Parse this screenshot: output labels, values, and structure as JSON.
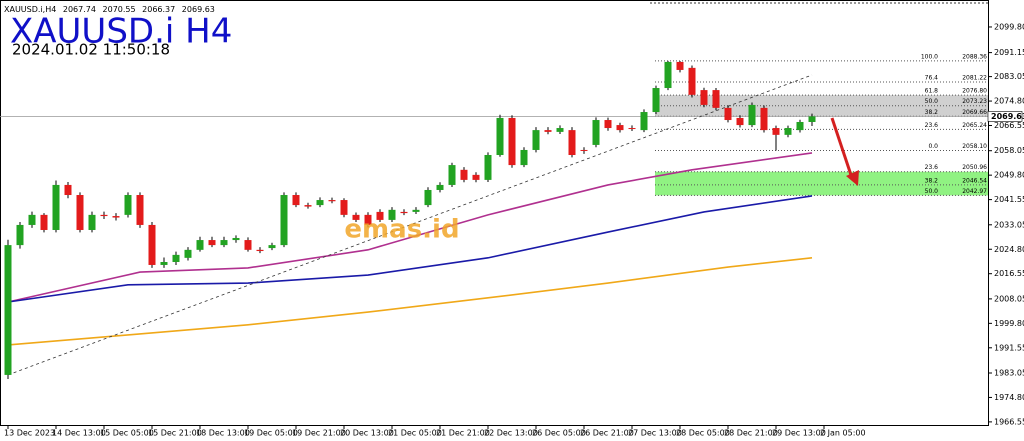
{
  "chart_data": {
    "type": "candlestick",
    "symbol_header": "XAUUSD.i,H4",
    "title": "XAUUSD.i H4",
    "subtitle": "2024.01.02 11:50:18",
    "watermark": "emas.id",
    "up_color": "#22a322",
    "down_color": "#e31b1b",
    "ylim": [
      1965.5,
      2108.9
    ],
    "yticks": [
      {
        "value": 2099.8,
        "label": "2099.80"
      },
      2091.15,
      {
        "value": 2083.05,
        "label": "2083.05"
      },
      {
        "value": 2074.8,
        "label": "2074.80"
      },
      2066.55,
      {
        "value": 2058.05,
        "label": "2058.05"
      },
      {
        "value": 2049.8,
        "label": "2049.80"
      },
      2041.55,
      {
        "value": 2033.05,
        "label": "2033.05"
      },
      {
        "value": 2024.8,
        "label": "2024.80"
      },
      2016.55,
      {
        "value": 2008.05,
        "label": "2008.05"
      },
      {
        "value": 1999.8,
        "label": "1999.80"
      },
      1991.55,
      {
        "value": 1983.05,
        "label": "1983.05"
      },
      {
        "value": 1974.8,
        "label": "1974.80"
      },
      1966.55
    ],
    "xticks": [
      {
        "value": 0,
        "label": "13 Dec 2023"
      },
      {
        "value": 4,
        "label": "14 Dec 13:00"
      },
      {
        "value": 8,
        "label": "15 Dec 05:00"
      },
      {
        "value": 12,
        "label": "15 Dec 21:00"
      },
      {
        "value": 16,
        "label": "18 Dec 13:00"
      },
      {
        "value": 20,
        "label": "19 Dec 05:00"
      },
      {
        "value": 24,
        "label": "19 Dec 21:00"
      },
      {
        "value": 28,
        "label": "20 Dec 13:00"
      },
      {
        "value": 32,
        "label": "21 Dec 05:00"
      },
      {
        "value": 36,
        "label": "21 Dec 21:00"
      },
      {
        "value": 40,
        "label": "22 Dec 13:00"
      },
      {
        "value": 44,
        "label": "26 Dec 05:00"
      },
      {
        "value": 48,
        "label": "26 Dec 21:00"
      },
      {
        "value": 52,
        "label": "27 Dec 13:00"
      },
      {
        "value": 56,
        "label": "28 Dec 05:00"
      },
      {
        "value": 60,
        "label": "28 Dec 21:00"
      },
      {
        "value": 64,
        "label": "29 Dec 13:00"
      },
      {
        "value": 68,
        "label": "2 Jan 05:00"
      }
    ],
    "ohlc": [
      [
        1982.4,
        2028,
        1981,
        2026.2
      ],
      [
        2026.2,
        2034,
        2025,
        2033
      ],
      [
        2033,
        2037.5,
        2032,
        2036.4
      ],
      [
        2036.4,
        2037,
        2030.5,
        2031.3
      ],
      [
        2031.3,
        2048,
        2030.5,
        2046.5
      ],
      [
        2046.5,
        2047.5,
        2042,
        2043.1
      ],
      [
        2043.1,
        2044,
        2030.5,
        2031.3
      ],
      [
        2031.3,
        2037.5,
        2030.5,
        2036.4
      ],
      [
        2036.4,
        2037.5,
        2035,
        2036
      ],
      [
        2036,
        2037,
        2034.5,
        2035.5
      ],
      [
        2036.4,
        2044,
        2035.5,
        2043.1
      ],
      [
        2043.1,
        2044,
        2032,
        2033
      ],
      [
        2033,
        2034,
        2018.5,
        2019.5
      ],
      [
        2019.5,
        2022,
        2018.5,
        2020.5
      ],
      [
        2020.5,
        2024,
        2019.5,
        2022.9
      ],
      [
        2021.9,
        2025.5,
        2021,
        2024.6
      ],
      [
        2024.6,
        2029,
        2024,
        2027.9
      ],
      [
        2027.9,
        2029,
        2025.5,
        2026.2
      ],
      [
        2026.2,
        2029,
        2025.5,
        2027.9
      ],
      [
        2027.9,
        2029.5,
        2027,
        2028.6
      ],
      [
        2027.9,
        2028.8,
        2024,
        2024.6
      ],
      [
        2024.6,
        2025.5,
        2023.5,
        2024.2
      ],
      [
        2025.2,
        2027,
        2024.5,
        2026.2
      ],
      [
        2026.2,
        2044,
        2025.5,
        2043.1
      ],
      [
        2043.1,
        2044,
        2039,
        2039.7
      ],
      [
        2039.7,
        2040.5,
        2038.5,
        2039.2
      ],
      [
        2039.7,
        2042.3,
        2039,
        2041.4
      ],
      [
        2041.4,
        2042.2,
        2040.3,
        2041
      ],
      [
        2041.4,
        2042,
        2035.6,
        2036.4
      ],
      [
        2036.4,
        2037.2,
        2034,
        2034.7
      ],
      [
        2036.4,
        2037.3,
        2032.2,
        2033
      ],
      [
        2037.4,
        2038.3,
        2034,
        2034.7
      ],
      [
        2034.7,
        2039,
        2034,
        2038.1
      ],
      [
        2037.4,
        2038.3,
        2036.3,
        2037
      ],
      [
        2037.4,
        2039,
        2036.7,
        2038.1
      ],
      [
        2039.7,
        2045.7,
        2039,
        2044.8
      ],
      [
        2044.8,
        2047.4,
        2044,
        2046.5
      ],
      [
        2046.5,
        2054,
        2045.8,
        2053.2
      ],
      [
        2051.6,
        2052.5,
        2047.4,
        2048.2
      ],
      [
        2049.9,
        2050.8,
        2047.4,
        2048.2
      ],
      [
        2048.2,
        2057.5,
        2047.5,
        2056.6
      ],
      [
        2056.6,
        2070.2,
        2056,
        2069.1
      ],
      [
        2069.1,
        2070,
        2052.3,
        2053.2
      ],
      [
        2053.2,
        2059.2,
        2052.5,
        2058.3
      ],
      [
        2058.3,
        2066,
        2057.5,
        2065
      ],
      [
        2065,
        2066,
        2063.6,
        2064.4
      ],
      [
        2064.4,
        2066.6,
        2063.7,
        2065.7
      ],
      [
        2065,
        2066,
        2055.8,
        2056.6
      ],
      [
        2058.3,
        2059.2,
        2057,
        2058
      ],
      [
        2060,
        2069.3,
        2059.2,
        2068.4
      ],
      [
        2068.4,
        2069.2,
        2064.8,
        2065.7
      ],
      [
        2066.7,
        2067.5,
        2064.2,
        2065
      ],
      [
        2065.7,
        2066.6,
        2064.7,
        2065.5
      ],
      [
        2065,
        2072,
        2064.3,
        2071.1
      ],
      [
        2071.1,
        2080,
        2070.4,
        2079.2
      ],
      [
        2079.2,
        2088.36,
        2078.5,
        2088
      ],
      [
        2088,
        2088.3,
        2084.5,
        2085.3
      ],
      [
        2086,
        2086.8,
        2076,
        2076.9
      ],
      [
        2078.5,
        2079.3,
        2072.7,
        2073.5
      ],
      [
        2078.5,
        2079.2,
        2071.7,
        2072.5
      ],
      [
        2072.5,
        2073.3,
        2067.6,
        2068.4
      ],
      [
        2069.1,
        2070,
        2065.9,
        2066.7
      ],
      [
        2066.7,
        2074.3,
        2066,
        2073.5
      ],
      [
        2072.5,
        2073.3,
        2064.2,
        2065
      ],
      [
        2065.7,
        2066.5,
        2058.1,
        2063.4
      ],
      [
        2063.4,
        2066.5,
        2062.6,
        2065.7
      ],
      [
        2065,
        2068.5,
        2064.2,
        2067.74
      ],
      [
        2067.74,
        2070.55,
        2066.37,
        2069.63
      ]
    ],
    "series": [
      {
        "color": "#b0308f",
        "x": [
          0,
          11,
          20,
          30,
          40,
          50,
          57,
          67
        ],
        "values": [
          2007.0,
          2017.1,
          2018.5,
          2024.6,
          2036.4,
          2046.5,
          2051.6,
          2057.3
        ]
      },
      {
        "color": "#1a1aa8",
        "x": [
          0,
          10,
          20,
          30,
          40,
          50,
          58,
          67
        ],
        "values": [
          2007.0,
          2012.8,
          2013.4,
          2016.1,
          2021.9,
          2030.6,
          2037.4,
          2042.8
        ]
      },
      {
        "color": "#f0a818",
        "x": [
          0,
          10,
          20,
          30,
          40,
          50,
          60,
          67
        ],
        "values": [
          1992.5,
          1995.9,
          1999.3,
          2003.6,
          2008.4,
          2013.4,
          2018.8,
          2021.9
        ]
      },
      {
        "color": "#333333",
        "dashed": true,
        "x": [
          0,
          67
        ],
        "values": [
          1982.4,
          2083.6
        ]
      }
    ],
    "fibonacci": [
      {
        "zone_color": "#c8c8c8",
        "levels": [
          {
            "level": "100.0",
            "price": 2088.36
          },
          {
            "level": "76.4",
            "price": 2081.22
          },
          {
            "level": "61.8",
            "price": {
              "value": 2076.8,
              "label": "2076.80"
            },
            "shaded": true
          },
          {
            "level": "50.0",
            "price": 2073.23,
            "shaded": true
          },
          {
            "level": "38.2",
            "price": 2069.66,
            "shaded": true
          },
          {
            "level": "23.6",
            "price": 2065.24
          },
          {
            "level": "0.0",
            "price": {
              "value": 2058.1,
              "label": "2058.10"
            }
          }
        ]
      },
      {
        "zone_color": "#7cf06c",
        "levels": [
          {
            "level": "23.6",
            "price": 2050.96,
            "shaded": true
          },
          {
            "level": "38.2",
            "price": 2046.54,
            "shaded": true
          },
          {
            "level": "50.0",
            "price": 2042.97,
            "shaded": true
          }
        ]
      }
    ]
  }
}
